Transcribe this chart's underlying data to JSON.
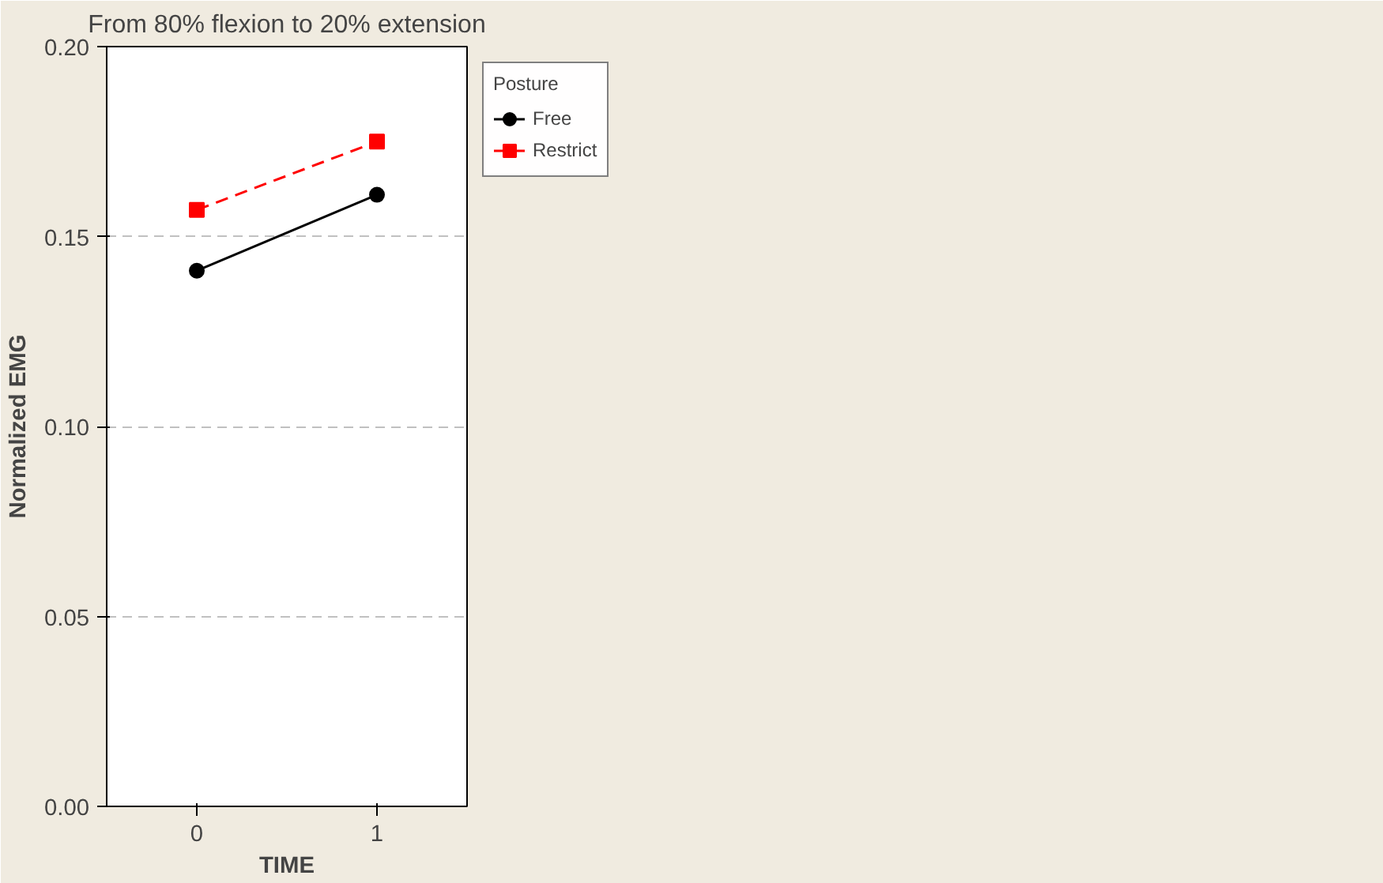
{
  "chart_data": {
    "type": "line",
    "title": "From 80% flexion to 20% extension",
    "xlabel": "TIME",
    "ylabel": "Normalized EMG",
    "legend_title": "Posture",
    "categories": [
      "0",
      "1"
    ],
    "series": [
      {
        "name": "Free",
        "color": "#000000",
        "values": [
          0.141,
          0.161
        ],
        "marker": "circle",
        "line_style": "solid"
      },
      {
        "name": "Restrict",
        "color": "#ff0000",
        "values": [
          0.157,
          0.175
        ],
        "marker": "square",
        "line_style": "dashed"
      }
    ],
    "ylim": [
      0,
      0.2
    ],
    "yticks": [
      {
        "value": 0,
        "label": "0.00"
      },
      {
        "value": 0.05,
        "label": "0.05"
      },
      {
        "value": 0.1,
        "label": "0.10"
      },
      {
        "value": 0.15,
        "label": "0.15"
      },
      {
        "value": 0.2,
        "label": "0.20"
      }
    ],
    "grid": "y",
    "legend": "top right"
  }
}
